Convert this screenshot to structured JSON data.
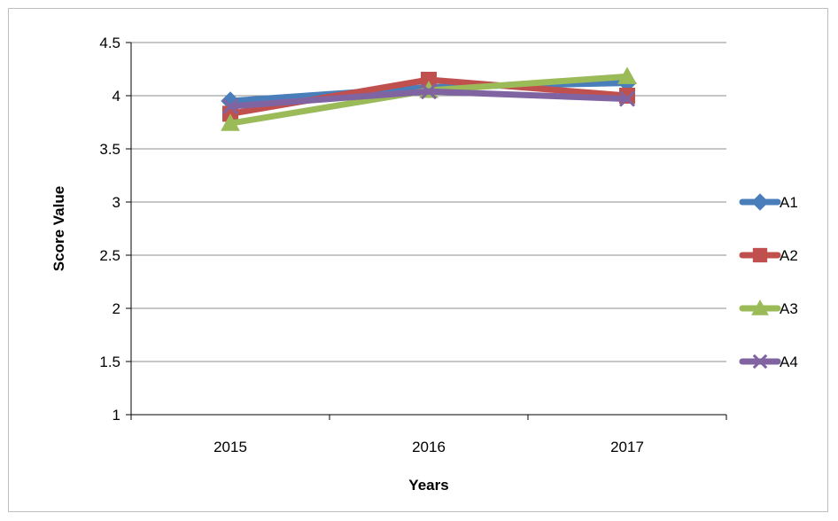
{
  "chart_data": {
    "type": "line",
    "title": "",
    "xlabel": "Years",
    "ylabel": "Score Value",
    "categories": [
      "2015",
      "2016",
      "2017"
    ],
    "ylim": [
      1,
      4.5
    ],
    "yticks": [
      1,
      1.5,
      2,
      2.5,
      3,
      3.5,
      4,
      4.5
    ],
    "ytick_labels": [
      "1",
      "1.5",
      "2",
      "2.5",
      "3",
      "3.5",
      "4",
      "4.5"
    ],
    "grid": true,
    "legend_position": "right",
    "series": [
      {
        "name": "A1",
        "values": [
          3.95,
          4.08,
          4.12
        ],
        "color": "#4a7ebb",
        "marker": "diamond"
      },
      {
        "name": "A2",
        "values": [
          3.83,
          4.15,
          4.0
        ],
        "color": "#c0504d",
        "marker": "square"
      },
      {
        "name": "A3",
        "values": [
          3.74,
          4.05,
          4.18
        ],
        "color": "#9bbb59",
        "marker": "triangle"
      },
      {
        "name": "A4",
        "values": [
          3.9,
          4.04,
          3.97
        ],
        "color": "#8064a2",
        "marker": "x"
      }
    ]
  }
}
